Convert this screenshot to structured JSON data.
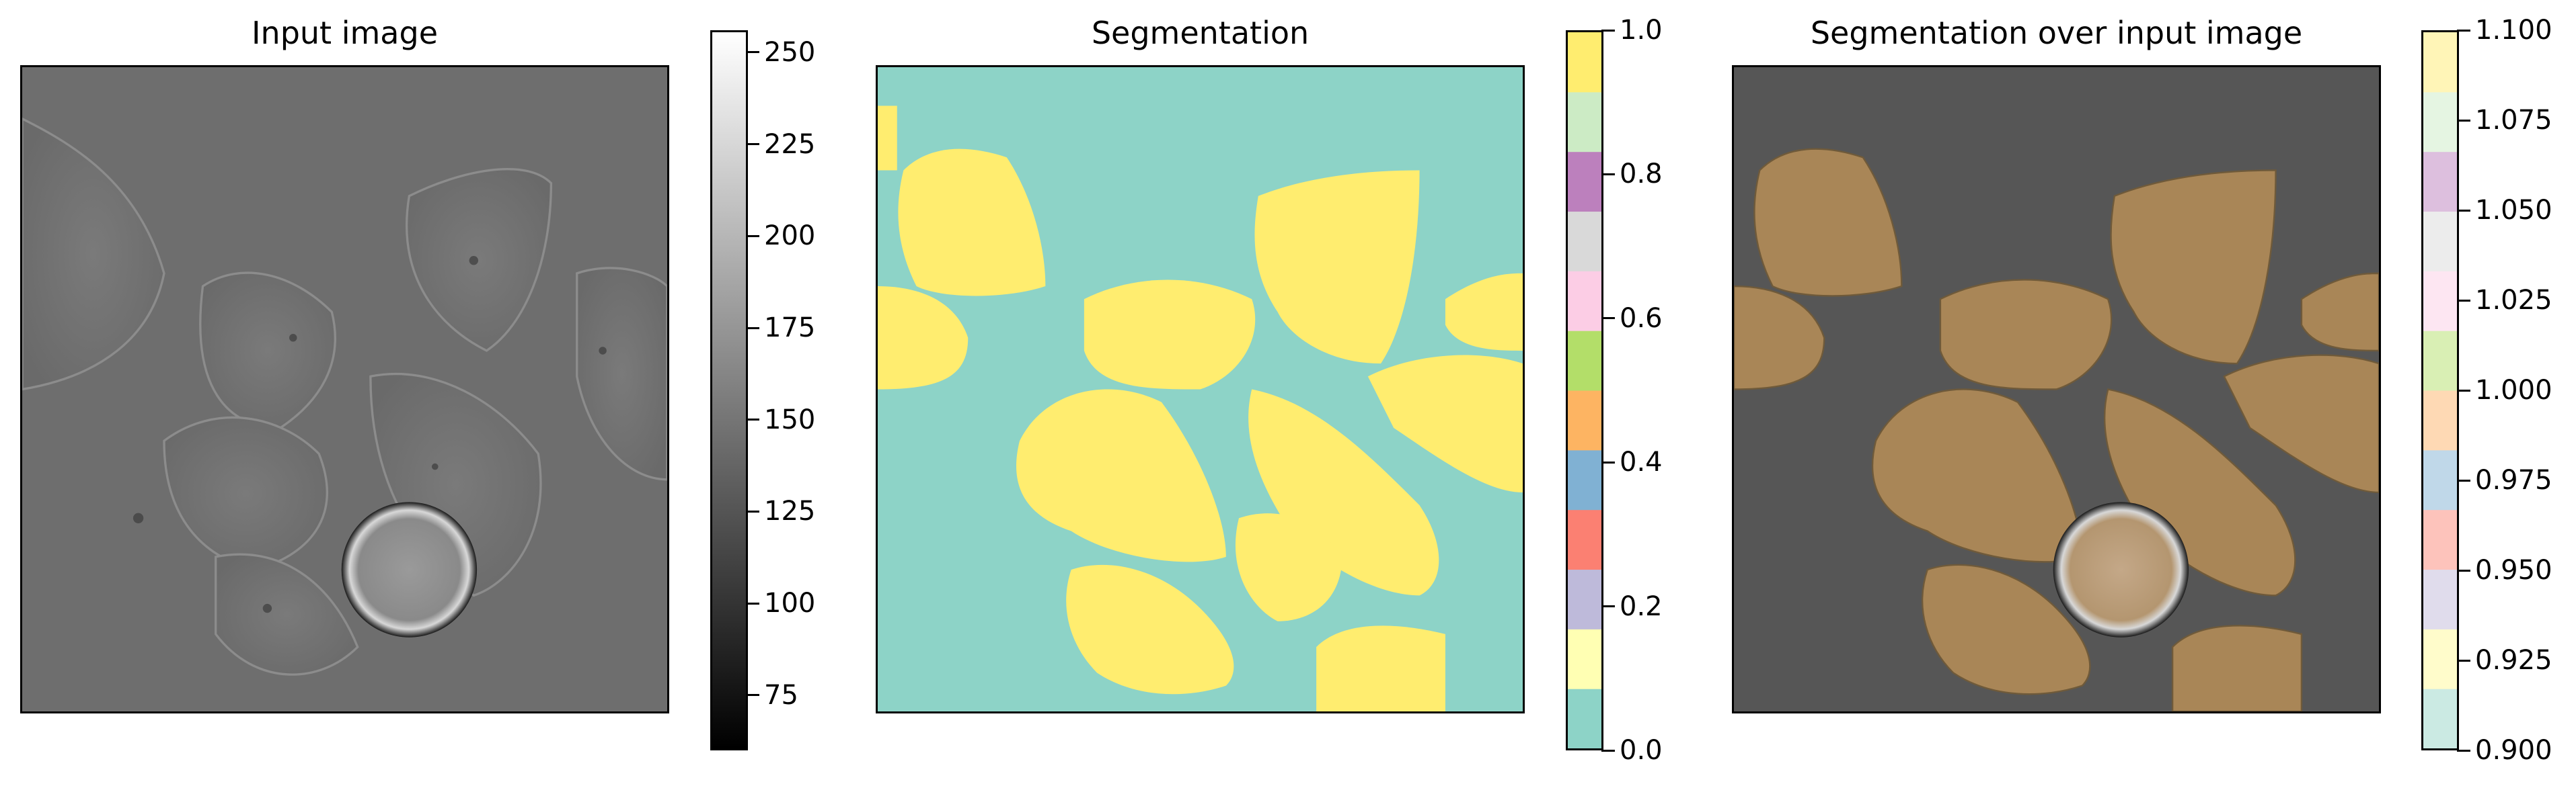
{
  "panels": [
    {
      "title": "Input image",
      "colorbar": {
        "colormap": "gray",
        "ticks": [
          "75",
          "100",
          "125",
          "150",
          "175",
          "200",
          "225",
          "250"
        ]
      }
    },
    {
      "title": "Segmentation",
      "colorbar": {
        "colormap": "Set3",
        "ticks": [
          "0.0",
          "0.2",
          "0.4",
          "0.6",
          "0.8",
          "1.0"
        ]
      }
    },
    {
      "title": "Segmentation over input image",
      "colorbar": {
        "colormap": "Pastel1",
        "ticks": [
          "0.900",
          "0.925",
          "0.950",
          "0.975",
          "1.000",
          "1.025",
          "1.050",
          "1.075",
          "1.100"
        ]
      }
    }
  ],
  "colors": {
    "background_teal": "#8dd3c7",
    "segment_yellow": "#ffed6f",
    "overlay_tan": "#b08a5a",
    "input_gray": "#6e6e6e"
  }
}
